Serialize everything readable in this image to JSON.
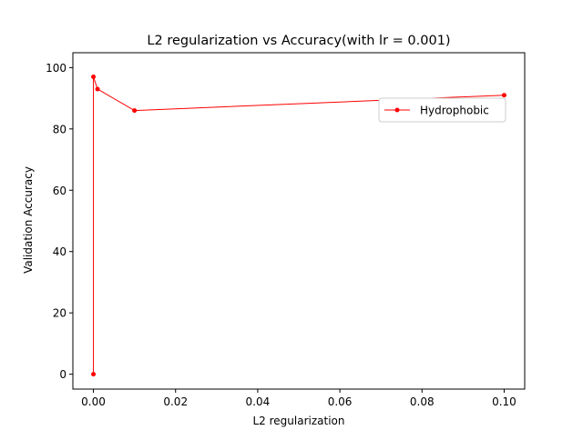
{
  "chart_data": {
    "type": "line",
    "title": "L2 regularization vs Accuracy(with lr = 0.001)",
    "xlabel": "L2 regularization",
    "ylabel": "Validation Accuracy",
    "xlim": [
      -0.005,
      0.105
    ],
    "ylim": [
      -4.85,
      104.85
    ],
    "xticks": [
      0.0,
      0.02,
      0.04,
      0.06,
      0.08,
      0.1
    ],
    "xtick_labels": [
      "0.00",
      "0.02",
      "0.04",
      "0.06",
      "0.08",
      "0.10"
    ],
    "yticks": [
      0,
      20,
      40,
      60,
      80,
      100
    ],
    "ytick_labels": [
      "0",
      "20",
      "40",
      "60",
      "80",
      "100"
    ],
    "grid": false,
    "legend_position": "upper right",
    "series": [
      {
        "name": "Hydrophobic",
        "color": "#ff0000",
        "marker": "circle",
        "x": [
          0.0,
          0.0,
          0.001,
          0.01,
          0.1
        ],
        "y": [
          0,
          97,
          93,
          86,
          91
        ]
      }
    ]
  }
}
